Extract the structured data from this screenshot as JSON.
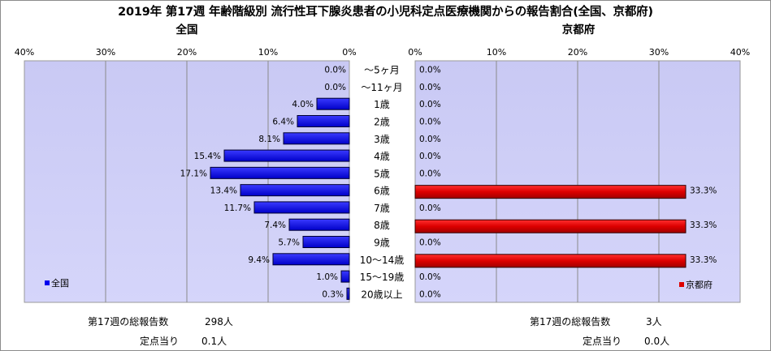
{
  "title": "2019年 第17週 年齢階級別 流行性耳下腺炎患者の小児科定点医療機関からの報告割合(全国、京都府)",
  "chart_data": [
    {
      "type": "bar",
      "orientation": "horizontal",
      "title": "全国",
      "categories": [
        "～5ヶ月",
        "～11ヶ月",
        "1歳",
        "2歳",
        "3歳",
        "4歳",
        "5歳",
        "6歳",
        "7歳",
        "8歳",
        "9歳",
        "10～14歳",
        "15～19歳",
        "20歳以上"
      ],
      "series": [
        {
          "name": "全国",
          "values": [
            0.0,
            0.0,
            4.0,
            6.4,
            8.1,
            15.4,
            17.1,
            13.4,
            11.7,
            7.4,
            5.7,
            9.4,
            1.0,
            0.3
          ],
          "color": "#0000ee"
        }
      ],
      "xlim": [
        0,
        40
      ],
      "x_reversed": true,
      "ticks": [
        "40%",
        "30%",
        "20%",
        "10%",
        "0%"
      ],
      "legend_position": "bottom-left",
      "grid": true
    },
    {
      "type": "bar",
      "orientation": "horizontal",
      "title": "京都府",
      "categories": [
        "～5ヶ月",
        "～11ヶ月",
        "1歳",
        "2歳",
        "3歳",
        "4歳",
        "5歳",
        "6歳",
        "7歳",
        "8歳",
        "9歳",
        "10～14歳",
        "15～19歳",
        "20歳以上"
      ],
      "series": [
        {
          "name": "京都府",
          "values": [
            0.0,
            0.0,
            0.0,
            0.0,
            0.0,
            0.0,
            0.0,
            33.3,
            0.0,
            33.3,
            0.0,
            33.3,
            0.0,
            0.0
          ],
          "color": "#dd0000"
        }
      ],
      "xlim": [
        0,
        40
      ],
      "ticks": [
        "0%",
        "10%",
        "20%",
        "30%",
        "40%"
      ],
      "legend_position": "bottom-right",
      "grid": true
    }
  ],
  "summary": {
    "national": {
      "total_label": "第17週の総報告数",
      "total_value": "298人",
      "per_site_label": "定点当り",
      "per_site_value": "0.1人"
    },
    "kyoto": {
      "total_label": "第17週の総報告数",
      "total_value": "3人",
      "per_site_label": "定点当り",
      "per_site_value": "0.0人"
    }
  }
}
